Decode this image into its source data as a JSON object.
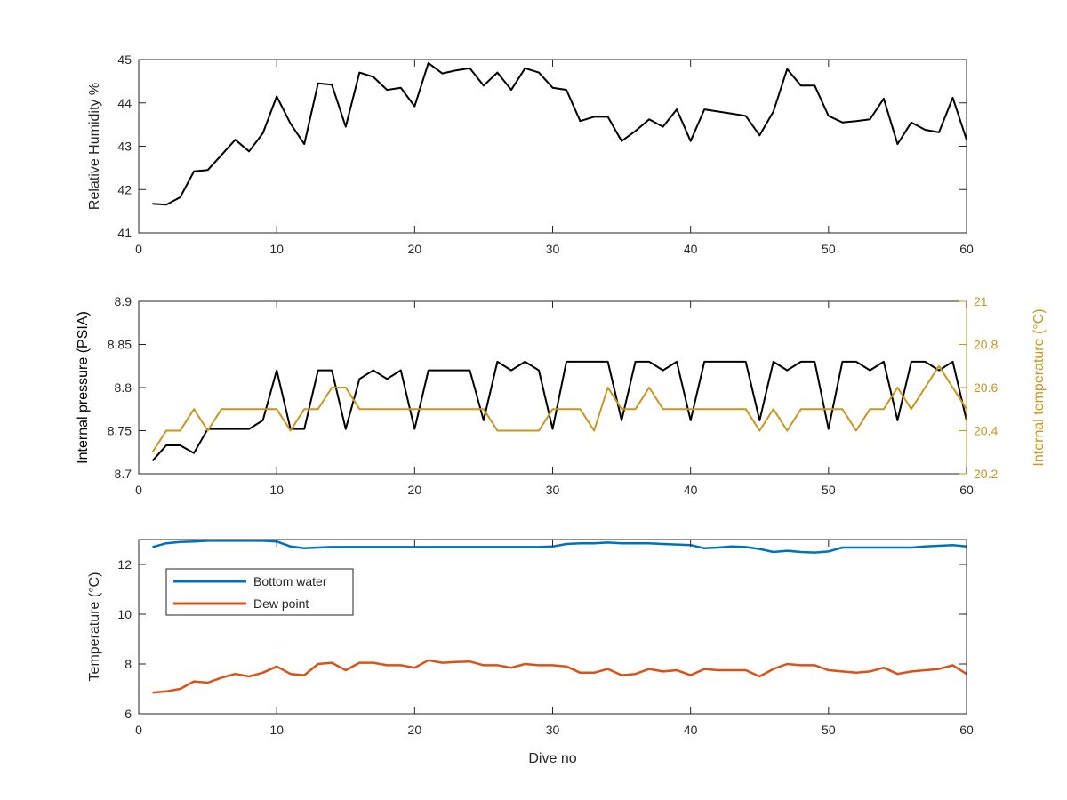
{
  "chart_data": [
    {
      "type": "line",
      "xlabel": "",
      "ylabel": "Relative Humidity %",
      "xlim": [
        0,
        60
      ],
      "ylim": [
        41,
        45
      ],
      "xticks": [
        "0",
        "10",
        "20",
        "30",
        "40",
        "50",
        "60"
      ],
      "yticks": [
        "41",
        "42",
        "43",
        "44",
        "45"
      ],
      "grid": false,
      "colors": {
        "series": "#000000",
        "axis": "#262626"
      },
      "series": [
        {
          "name": "",
          "x": [
            1,
            2,
            3,
            4,
            5,
            6,
            7,
            8,
            9,
            10,
            11,
            12,
            13,
            14,
            15,
            16,
            17,
            18,
            19,
            20,
            21,
            22,
            23,
            24,
            25,
            26,
            27,
            28,
            29,
            30,
            31,
            32,
            33,
            34,
            35,
            36,
            37,
            38,
            39,
            40,
            41,
            42,
            43,
            44,
            45,
            46,
            47,
            48,
            49,
            50,
            51,
            52,
            53,
            54,
            55,
            56,
            57,
            58,
            59,
            60
          ],
          "values": [
            41.67,
            41.65,
            41.82,
            42.42,
            42.45,
            42.8,
            43.15,
            42.88,
            43.3,
            44.15,
            43.52,
            43.05,
            44.45,
            44.42,
            43.45,
            44.7,
            44.6,
            44.3,
            44.35,
            43.92,
            44.92,
            44.68,
            44.75,
            44.8,
            44.4,
            44.7,
            44.3,
            44.8,
            44.7,
            44.35,
            44.3,
            43.58,
            43.68,
            43.68,
            43.12,
            43.35,
            43.62,
            43.45,
            43.85,
            43.12,
            43.85,
            43.8,
            43.75,
            43.7,
            43.25,
            43.8,
            44.78,
            44.4,
            44.4,
            43.7,
            43.55,
            43.58,
            43.62,
            44.1,
            43.05,
            43.55,
            43.38,
            43.32,
            44.12,
            43.15
          ]
        }
      ]
    },
    {
      "type": "line",
      "xlabel": "",
      "ylabel": "Internal pressure (PSIA)",
      "y2label": "Internal temperature (°C)",
      "xlim": [
        0,
        60
      ],
      "ylim": [
        8.7,
        8.9
      ],
      "y2lim": [
        20.2,
        21
      ],
      "xticks": [
        "0",
        "10",
        "20",
        "30",
        "40",
        "50",
        "60"
      ],
      "yticks": [
        "8.7",
        "8.75",
        "8.8",
        "8.85",
        "8.9"
      ],
      "y2ticks": [
        "20.2",
        "20.4",
        "20.6",
        "20.8",
        "21"
      ],
      "grid": false,
      "colors": {
        "pressure": "#000000",
        "temperature": "#C8961E",
        "right_axis": "#C8961E",
        "axis": "#262626"
      },
      "series": [
        {
          "name": "",
          "axis": "left",
          "x": [
            1,
            2,
            3,
            4,
            5,
            6,
            7,
            8,
            9,
            10,
            11,
            12,
            13,
            14,
            15,
            16,
            17,
            18,
            19,
            20,
            21,
            22,
            23,
            24,
            25,
            26,
            27,
            28,
            29,
            30,
            31,
            32,
            33,
            34,
            35,
            36,
            37,
            38,
            39,
            40,
            41,
            42,
            43,
            44,
            45,
            46,
            47,
            48,
            49,
            50,
            51,
            52,
            53,
            54,
            55,
            56,
            57,
            58,
            59,
            60
          ],
          "values": [
            8.715,
            8.733,
            8.733,
            8.724,
            8.752,
            8.752,
            8.752,
            8.752,
            8.762,
            8.82,
            8.752,
            8.752,
            8.82,
            8.82,
            8.752,
            8.81,
            8.82,
            8.81,
            8.82,
            8.752,
            8.82,
            8.82,
            8.82,
            8.82,
            8.762,
            8.83,
            8.82,
            8.83,
            8.82,
            8.752,
            8.83,
            8.83,
            8.83,
            8.83,
            8.762,
            8.83,
            8.83,
            8.82,
            8.83,
            8.762,
            8.83,
            8.83,
            8.83,
            8.83,
            8.762,
            8.83,
            8.82,
            8.83,
            8.83,
            8.752,
            8.83,
            8.83,
            8.82,
            8.83,
            8.762,
            8.83,
            8.83,
            8.82,
            8.83,
            8.762
          ]
        },
        {
          "name": "",
          "axis": "right",
          "x": [
            1,
            2,
            3,
            4,
            5,
            6,
            7,
            8,
            9,
            10,
            11,
            12,
            13,
            14,
            15,
            16,
            17,
            18,
            19,
            20,
            21,
            22,
            23,
            24,
            25,
            26,
            27,
            28,
            29,
            30,
            31,
            32,
            33,
            34,
            35,
            36,
            37,
            38,
            39,
            40,
            41,
            42,
            43,
            44,
            45,
            46,
            47,
            48,
            49,
            50,
            51,
            52,
            53,
            54,
            55,
            56,
            57,
            58,
            59,
            60
          ],
          "values": [
            20.3,
            20.4,
            20.4,
            20.5,
            20.4,
            20.5,
            20.5,
            20.5,
            20.5,
            20.5,
            20.4,
            20.5,
            20.5,
            20.6,
            20.6,
            20.5,
            20.5,
            20.5,
            20.5,
            20.5,
            20.5,
            20.5,
            20.5,
            20.5,
            20.5,
            20.4,
            20.4,
            20.4,
            20.4,
            20.5,
            20.5,
            20.5,
            20.4,
            20.6,
            20.5,
            20.5,
            20.6,
            20.5,
            20.5,
            20.5,
            20.5,
            20.5,
            20.5,
            20.5,
            20.4,
            20.5,
            20.4,
            20.5,
            20.5,
            20.5,
            20.5,
            20.4,
            20.5,
            20.5,
            20.6,
            20.5,
            20.6,
            20.7,
            20.6,
            20.5
          ]
        }
      ]
    },
    {
      "type": "line",
      "xlabel": "Dive no",
      "ylabel": "Temperature (°C)",
      "xlim": [
        0,
        60
      ],
      "ylim": [
        6,
        13
      ],
      "xticks": [
        "0",
        "10",
        "20",
        "30",
        "40",
        "50",
        "60"
      ],
      "yticks": [
        "6",
        "8",
        "10",
        "12"
      ],
      "grid": false,
      "legend": {
        "placement": "top-left"
      },
      "colors": {
        "bottom_water": "#0072BD",
        "dew_point": "#D95319",
        "axis": "#262626"
      },
      "series": [
        {
          "name": "Bottom water",
          "color": "#0072BD",
          "x": [
            1,
            2,
            3,
            4,
            5,
            6,
            7,
            8,
            9,
            10,
            11,
            12,
            13,
            14,
            15,
            16,
            17,
            18,
            19,
            20,
            21,
            22,
            23,
            24,
            25,
            26,
            27,
            28,
            29,
            30,
            31,
            32,
            33,
            34,
            35,
            36,
            37,
            38,
            39,
            40,
            41,
            42,
            43,
            44,
            45,
            46,
            47,
            48,
            49,
            50,
            51,
            52,
            53,
            54,
            55,
            56,
            57,
            58,
            59,
            60
          ],
          "values": [
            12.7,
            12.85,
            12.9,
            12.92,
            12.95,
            12.95,
            12.95,
            12.95,
            12.95,
            12.92,
            12.72,
            12.65,
            12.68,
            12.7,
            12.7,
            12.7,
            12.7,
            12.7,
            12.7,
            12.7,
            12.7,
            12.7,
            12.7,
            12.7,
            12.7,
            12.7,
            12.7,
            12.7,
            12.7,
            12.72,
            12.82,
            12.85,
            12.85,
            12.88,
            12.85,
            12.85,
            12.85,
            12.82,
            12.8,
            12.78,
            12.65,
            12.68,
            12.72,
            12.7,
            12.62,
            12.5,
            12.55,
            12.5,
            12.48,
            12.52,
            12.68,
            12.68,
            12.68,
            12.68,
            12.68,
            12.68,
            12.72,
            12.75,
            12.78,
            12.72
          ]
        },
        {
          "name": "Dew point",
          "color": "#D95319",
          "x": [
            1,
            2,
            3,
            4,
            5,
            6,
            7,
            8,
            9,
            10,
            11,
            12,
            13,
            14,
            15,
            16,
            17,
            18,
            19,
            20,
            21,
            22,
            23,
            24,
            25,
            26,
            27,
            28,
            29,
            30,
            31,
            32,
            33,
            34,
            35,
            36,
            37,
            38,
            39,
            40,
            41,
            42,
            43,
            44,
            45,
            46,
            47,
            48,
            49,
            50,
            51,
            52,
            53,
            54,
            55,
            56,
            57,
            58,
            59,
            60
          ],
          "values": [
            6.85,
            6.9,
            7.0,
            7.3,
            7.25,
            7.45,
            7.6,
            7.5,
            7.65,
            7.9,
            7.6,
            7.55,
            8.0,
            8.05,
            7.75,
            8.05,
            8.05,
            7.95,
            7.95,
            7.85,
            8.15,
            8.05,
            8.08,
            8.1,
            7.95,
            7.95,
            7.85,
            8.0,
            7.95,
            7.95,
            7.9,
            7.65,
            7.65,
            7.8,
            7.55,
            7.6,
            7.8,
            7.7,
            7.75,
            7.55,
            7.8,
            7.75,
            7.75,
            7.75,
            7.5,
            7.8,
            8.0,
            7.95,
            7.95,
            7.75,
            7.7,
            7.65,
            7.7,
            7.85,
            7.6,
            7.7,
            7.75,
            7.8,
            7.95,
            7.6
          ]
        }
      ]
    }
  ]
}
